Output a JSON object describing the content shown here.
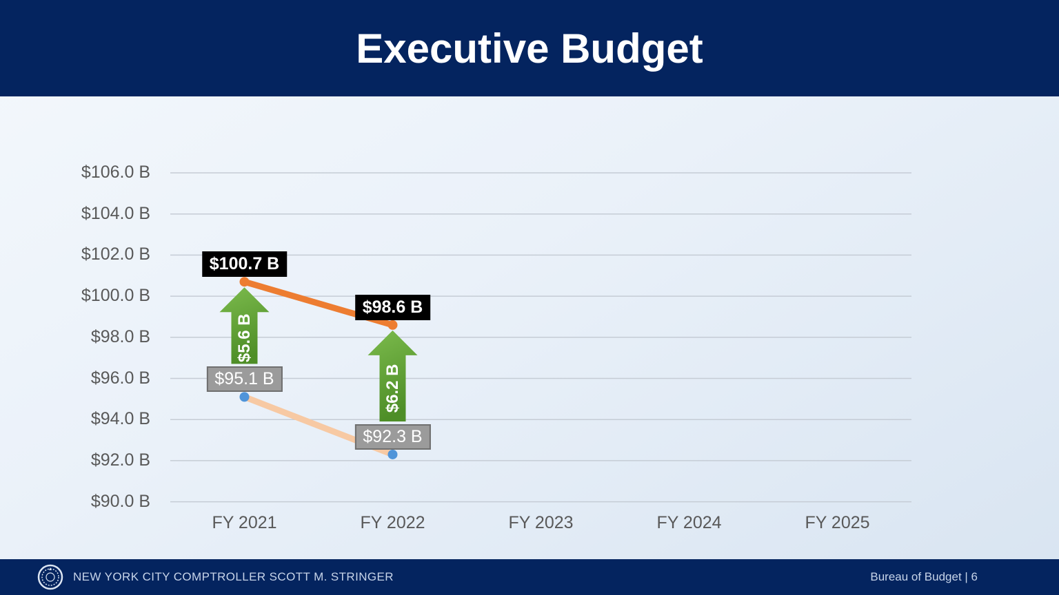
{
  "header": {
    "title": "Executive Budget"
  },
  "footer": {
    "left_text": "NEW YORK CITY COMPTROLLER SCOTT M. STRINGER",
    "right_text": "Bureau of Budget | 6",
    "seal_icon": "nyc-comptroller-seal"
  },
  "chart_data": {
    "type": "line",
    "title": "Executive Budget",
    "categories": [
      "FY 2021",
      "FY 2022",
      "FY 2023",
      "FY 2024",
      "FY 2025"
    ],
    "ylim": [
      90,
      106
    ],
    "grid": true,
    "legend": "none",
    "yticks": [
      {
        "value": 106,
        "label": "$106.0 B"
      },
      {
        "value": 104,
        "label": "$104.0 B"
      },
      {
        "value": 102,
        "label": "$102.0 B"
      },
      {
        "value": 100,
        "label": "$100.0 B"
      },
      {
        "value": 98,
        "label": "$98.0 B"
      },
      {
        "value": 96,
        "label": "$96.0 B"
      },
      {
        "value": 94,
        "label": "$94.0 B"
      },
      {
        "value": 92,
        "label": "$92.0 B"
      },
      {
        "value": 90,
        "label": "$90.0 B"
      }
    ],
    "series": [
      {
        "id": "upper-budget-line",
        "line_color": "#ed7d31",
        "point_color": "#ed7d31",
        "points": [
          {
            "category": "FY 2021",
            "value": 100.7,
            "label": "$100.7 B",
            "label_style": "black"
          },
          {
            "category": "FY 2022",
            "value": 98.6,
            "label": "$98.6 B",
            "label_style": "black"
          }
        ]
      },
      {
        "id": "lower-budget-line",
        "line_color": "#f7c9a3",
        "point_color": "#4f94d9",
        "points": [
          {
            "category": "FY 2021",
            "value": 95.1,
            "label": "$95.1 B",
            "label_style": "gray"
          },
          {
            "category": "FY 2022",
            "value": 92.3,
            "label": "$92.3 B",
            "label_style": "gray"
          }
        ]
      }
    ],
    "deltas": [
      {
        "category": "FY 2021",
        "from": 95.1,
        "to": 100.7,
        "label": "$5.6 B"
      },
      {
        "category": "FY 2022",
        "from": 92.3,
        "to": 98.6,
        "label": "$6.2 B"
      }
    ],
    "colors": {
      "grid": "#c5ccd5",
      "axis_text": "#595959",
      "arrow_green_light": "#7cbb4d",
      "arrow_green_dark": "#4e8e27",
      "label_black_bg": "#000000",
      "label_gray_bg": "#9b9b9b",
      "label_gray_border": "#6f6f6f",
      "header_navy": "#04245f"
    }
  }
}
